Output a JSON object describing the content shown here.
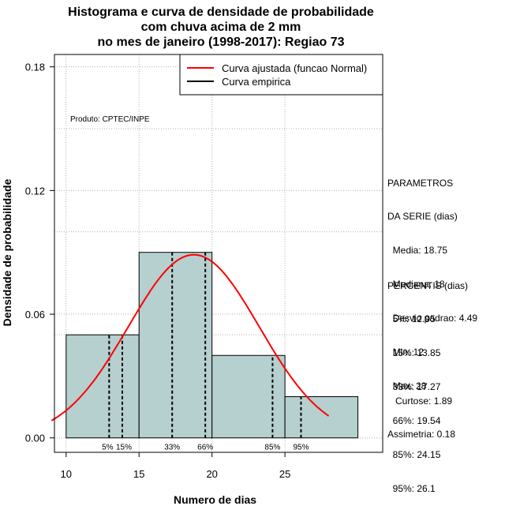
{
  "chart_data": {
    "type": "histogram",
    "title_lines": [
      "Histograma e curva de densidade de probabilidade",
      "com chuva acima de 2 mm",
      "no mes de janeiro (1998-2017): Regiao 73"
    ],
    "xlabel": "Numero de dias",
    "ylabel": "Densidade de probabilidade",
    "xlim": [
      9.2,
      31.7
    ],
    "ylim": [
      -0.007,
      0.186
    ],
    "x_ticks": [
      10,
      15,
      20,
      25
    ],
    "y_ticks": [
      0.0,
      0.06,
      0.12,
      0.18
    ],
    "y_tick_labels": [
      "0.00",
      "0.06",
      "0.12",
      "0.18"
    ],
    "grid": true,
    "bars": [
      {
        "x0": 10,
        "x1": 15,
        "density": 0.05
      },
      {
        "x0": 15,
        "x1": 20,
        "density": 0.09
      },
      {
        "x0": 20,
        "x1": 25,
        "density": 0.04
      },
      {
        "x0": 25,
        "x1": 30,
        "density": 0.02
      }
    ],
    "bar_color": "#b6cfcf",
    "normal_curve": {
      "mean": 18.75,
      "sd": 4.49,
      "x_range": [
        9.0,
        28.0
      ],
      "color": "#ff0000"
    },
    "legend": {
      "position": "top-right",
      "entries": [
        {
          "label": "Curva ajustada (funcao Normal)",
          "color": "#ff0000"
        },
        {
          "label": "Curva empirica",
          "color": "#000000"
        }
      ]
    },
    "percentile_lines": [
      {
        "label": "5%",
        "x": 12.95
      },
      {
        "label": "15%",
        "x": 13.85
      },
      {
        "label": "33%",
        "x": 17.27
      },
      {
        "label": "66%",
        "x": 19.54
      },
      {
        "label": "85%",
        "x": 24.15
      },
      {
        "label": "95%",
        "x": 26.1
      }
    ],
    "annotation": "Produto: CPTEC/INPE"
  },
  "side_panel": {
    "parametros": [
      "PARAMETROS",
      "DA SERIE (dias)",
      "  Media: 18.75",
      "  Mediana: 18",
      "  Desvio padrao: 4.49",
      "  Min: 12",
      "  Max: 28"
    ],
    "percentis": [
      "PERCENTIS (dias)",
      "  5%: 12.95",
      "  15%: 13.85",
      "  33%: 17.27",
      "  66%: 19.54",
      "  85%: 24.15",
      "  95%: 26.1"
    ],
    "curtose": "   Curtose: 1.89",
    "assimetria": "Assimetria: 0.18"
  }
}
